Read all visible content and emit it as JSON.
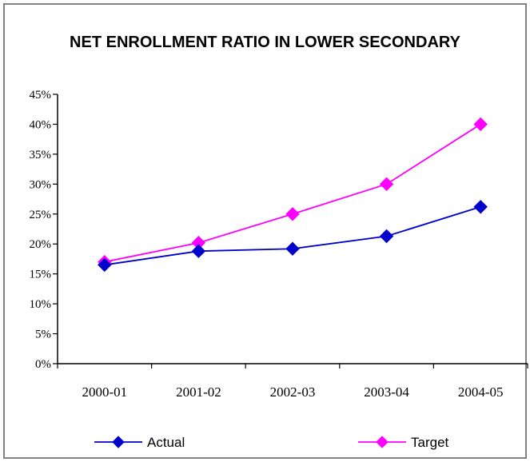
{
  "chart_data": {
    "type": "line",
    "title": "NET ENROLLMENT RATIO IN LOWER SECONDARY",
    "xlabel": "",
    "ylabel": "",
    "categories": [
      "2000-01",
      "2001-02",
      "2002-03",
      "2003-04",
      "2004-05"
    ],
    "ylim": [
      0,
      45
    ],
    "y_ticks": [
      "0%",
      "5%",
      "10%",
      "15%",
      "20%",
      "25%",
      "30%",
      "35%",
      "40%",
      "45%"
    ],
    "grid": false,
    "legend_position": "bottom",
    "series": [
      {
        "name": "Actual",
        "values": [
          16.5,
          18.8,
          19.2,
          21.3,
          26.2
        ],
        "color": "#0000cc",
        "marker": "diamond"
      },
      {
        "name": "Target",
        "values": [
          17,
          20.2,
          25,
          30,
          40
        ],
        "color": "#ff00ff",
        "marker": "diamond"
      }
    ]
  }
}
